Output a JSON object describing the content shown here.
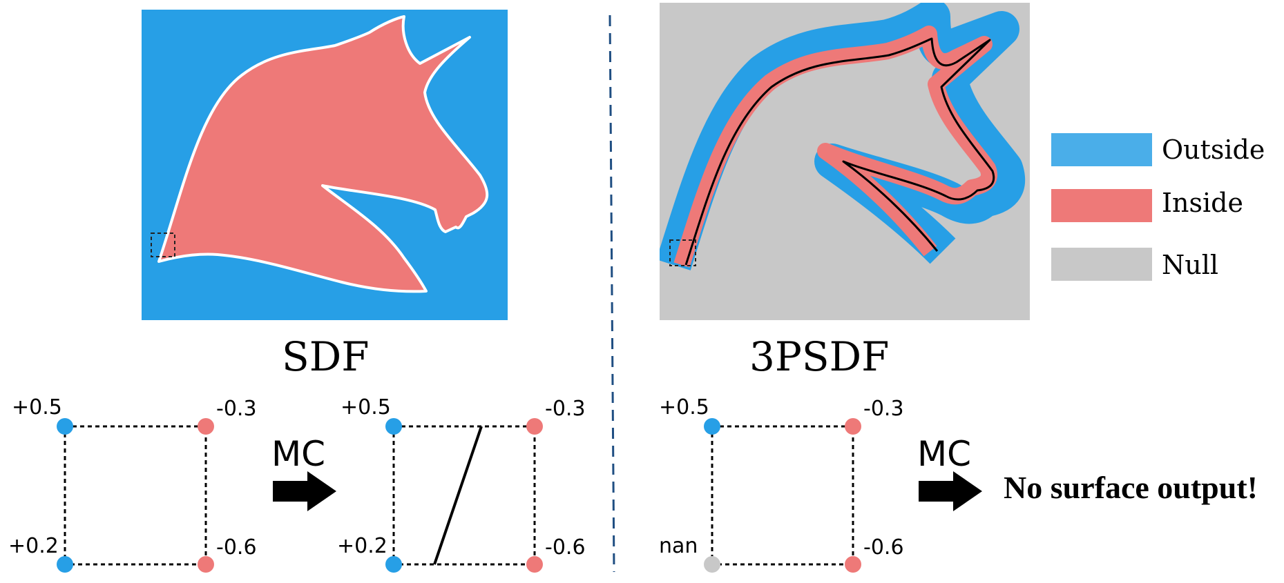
{
  "colors": {
    "outside": "#279fe6",
    "inside": "#ee7978",
    "null": "#c8c8c8",
    "corner_blue": "#279fe6",
    "corner_red": "#ee7978",
    "corner_gray": "#c8c8c8",
    "divider": "#1f4e82"
  },
  "sdf_panel": {
    "title": "SDF"
  },
  "psdf_panel": {
    "title": "3PSDF"
  },
  "legend": {
    "items": [
      {
        "label": "Outside",
        "color": "#4aaee9"
      },
      {
        "label": "Inside",
        "color": "#ee7978"
      },
      {
        "label": "Null",
        "color": "#c8c8c8"
      }
    ]
  },
  "cells": {
    "sdf_before": {
      "top_left": "+0.5",
      "top_right": "-0.3",
      "bottom_left": "+0.2",
      "bottom_right": "-0.6"
    },
    "sdf_after": {
      "top_left": "+0.5",
      "top_right": "-0.3",
      "bottom_left": "+0.2",
      "bottom_right": "-0.6"
    },
    "psdf_before": {
      "top_left": "+0.5",
      "top_right": "-0.3",
      "bottom_left": "nan",
      "bottom_right": "-0.6"
    }
  },
  "arrows": {
    "mc_label_1": "MC",
    "mc_label_2": "MC"
  },
  "result_text": "No surface output!"
}
